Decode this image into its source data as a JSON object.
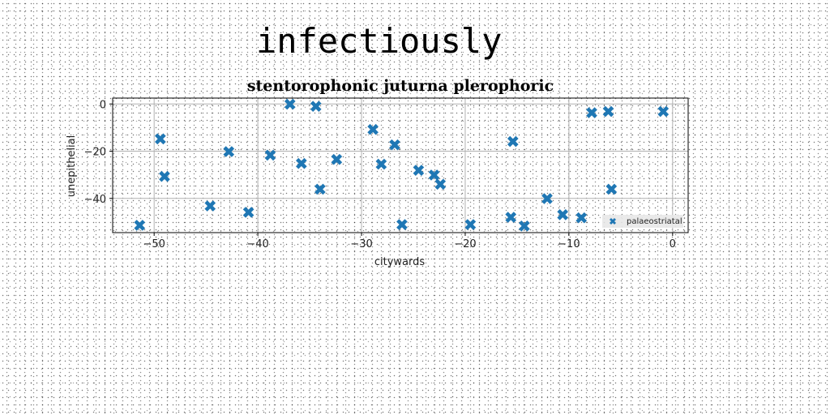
{
  "page_title": "infectiously",
  "colors": {
    "series": "#1f77b4",
    "grid": "#b0b0b0",
    "axes": "#000000",
    "legend_bg": "#e8e8e8"
  },
  "chart_data": {
    "type": "scatter",
    "title": "stentorophonic juturna plerophoric",
    "xlabel": "citywards",
    "ylabel": "unepithelial",
    "xlim": [
      -54,
      1.5
    ],
    "ylim": [
      -54.5,
      2.5
    ],
    "xticks": [
      -50,
      -40,
      -30,
      -20,
      -10,
      0
    ],
    "yticks": [
      0,
      -20,
      -40
    ],
    "xtick_labels": [
      "−50",
      "−40",
      "−30",
      "−20",
      "−10",
      "0"
    ],
    "ytick_labels": [
      "0",
      "−20",
      "−40"
    ],
    "grid": true,
    "legend_position": "lower right",
    "marker": "X",
    "series": [
      {
        "name": "palaeostriatal",
        "points": [
          {
            "x": -51.4,
            "y": -51.4
          },
          {
            "x": -49.4,
            "y": -14.8
          },
          {
            "x": -49.0,
            "y": -30.7
          },
          {
            "x": -44.6,
            "y": -43.2
          },
          {
            "x": -42.8,
            "y": -20.2
          },
          {
            "x": -40.9,
            "y": -45.9
          },
          {
            "x": -38.8,
            "y": -21.7
          },
          {
            "x": -36.9,
            "y": -0.1
          },
          {
            "x": -35.8,
            "y": -25.2
          },
          {
            "x": -34.4,
            "y": -1.0
          },
          {
            "x": -34.0,
            "y": -36.1
          },
          {
            "x": -32.4,
            "y": -23.5
          },
          {
            "x": -28.9,
            "y": -10.8
          },
          {
            "x": -28.1,
            "y": -25.5
          },
          {
            "x": -26.8,
            "y": -17.3
          },
          {
            "x": -26.1,
            "y": -51.1
          },
          {
            "x": -24.5,
            "y": -28.1
          },
          {
            "x": -23.0,
            "y": -30.1
          },
          {
            "x": -22.4,
            "y": -34.0
          },
          {
            "x": -19.5,
            "y": -51.1
          },
          {
            "x": -15.6,
            "y": -48.0
          },
          {
            "x": -15.4,
            "y": -15.9
          },
          {
            "x": -14.3,
            "y": -51.7
          },
          {
            "x": -12.1,
            "y": -40.1
          },
          {
            "x": -10.6,
            "y": -46.9
          },
          {
            "x": -8.8,
            "y": -48.2
          },
          {
            "x": -7.8,
            "y": -3.7
          },
          {
            "x": -6.2,
            "y": -3.2
          },
          {
            "x": -5.9,
            "y": -36.1
          },
          {
            "x": -0.9,
            "y": -3.2
          }
        ]
      }
    ]
  }
}
